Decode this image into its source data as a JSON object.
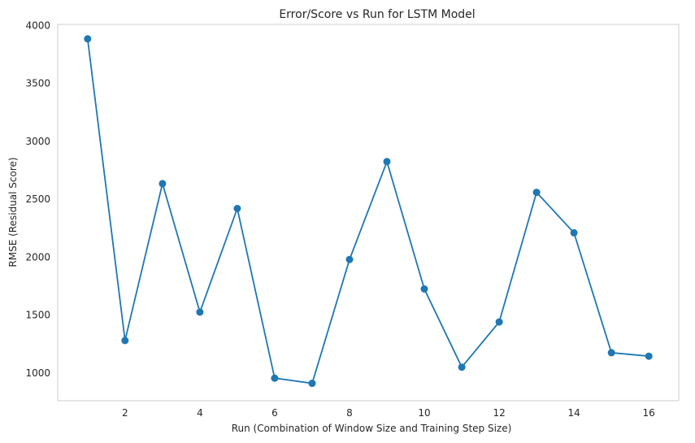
{
  "chart_data": {
    "type": "line",
    "title": "Error/Score vs Run for LSTM Model",
    "xlabel": "Run (Combination of Window Size and Training Step Size)",
    "ylabel": "RMSE (Residual Score)",
    "xlim": [
      0.2,
      16.8
    ],
    "ylim": [
      760,
      4010
    ],
    "xticks": [
      2,
      4,
      6,
      8,
      10,
      12,
      14,
      16
    ],
    "yticks": [
      1000,
      1500,
      2000,
      2500,
      3000,
      3500,
      4000
    ],
    "grid": false,
    "marker": "circle",
    "color": "#1f77b4",
    "series": [
      {
        "x": [
          1,
          2,
          3,
          4,
          5,
          6,
          7,
          8,
          9,
          10,
          11,
          12,
          13,
          14,
          15,
          16
        ],
        "values": [
          3885,
          1280,
          2635,
          1525,
          2420,
          955,
          910,
          1980,
          2825,
          1725,
          1050,
          1440,
          2560,
          2210,
          1175,
          1145
        ]
      }
    ]
  }
}
